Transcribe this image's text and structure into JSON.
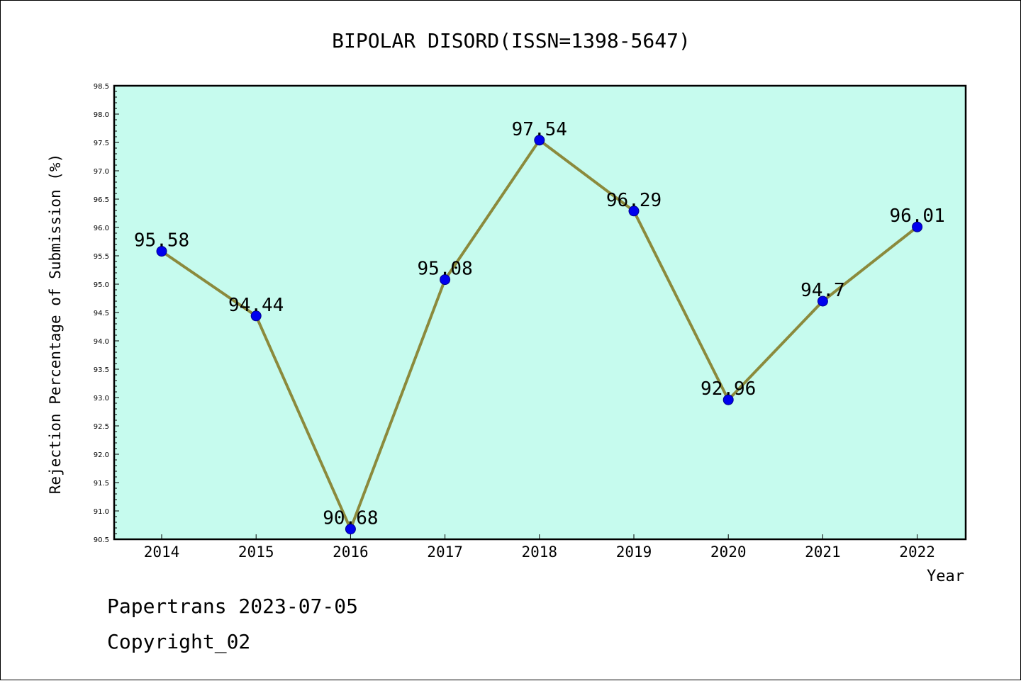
{
  "colors": {
    "plot_background": "#c6fbee",
    "line": "#8b8a3c",
    "marker": "#0000ee",
    "marker_edge": "#00008b"
  },
  "chart_data": {
    "type": "line",
    "title": "BIPOLAR DISORD(ISSN=1398-5647)",
    "xlabel": "Year",
    "ylabel": "Rejection Percentage of Submission (%)",
    "categories": [
      "2014",
      "2015",
      "2016",
      "2017",
      "2018",
      "2019",
      "2020",
      "2021",
      "2022"
    ],
    "series": [
      {
        "values": [
          95.58,
          94.44,
          90.68,
          95.08,
          97.54,
          96.29,
          92.96,
          94.7,
          96.01
        ],
        "data_labels": [
          "95.58",
          "94.44",
          "90.68",
          "95.08",
          "97.54",
          "96.29",
          "92.96",
          "94.7",
          "96.01"
        ]
      }
    ],
    "ylim": [
      90.5,
      98.5
    ],
    "yticks": [
      "90.5",
      "91.0",
      "91.5",
      "92.0",
      "92.5",
      "93.0",
      "93.5",
      "94.0",
      "94.5",
      "95.0",
      "95.5",
      "96.0",
      "96.5",
      "97.0",
      "97.5",
      "98.0",
      "98.5"
    ],
    "grid": false,
    "legend": "none"
  },
  "footer": {
    "line1": "Papertrans 2023-07-05",
    "line2": "Copyright_02"
  }
}
